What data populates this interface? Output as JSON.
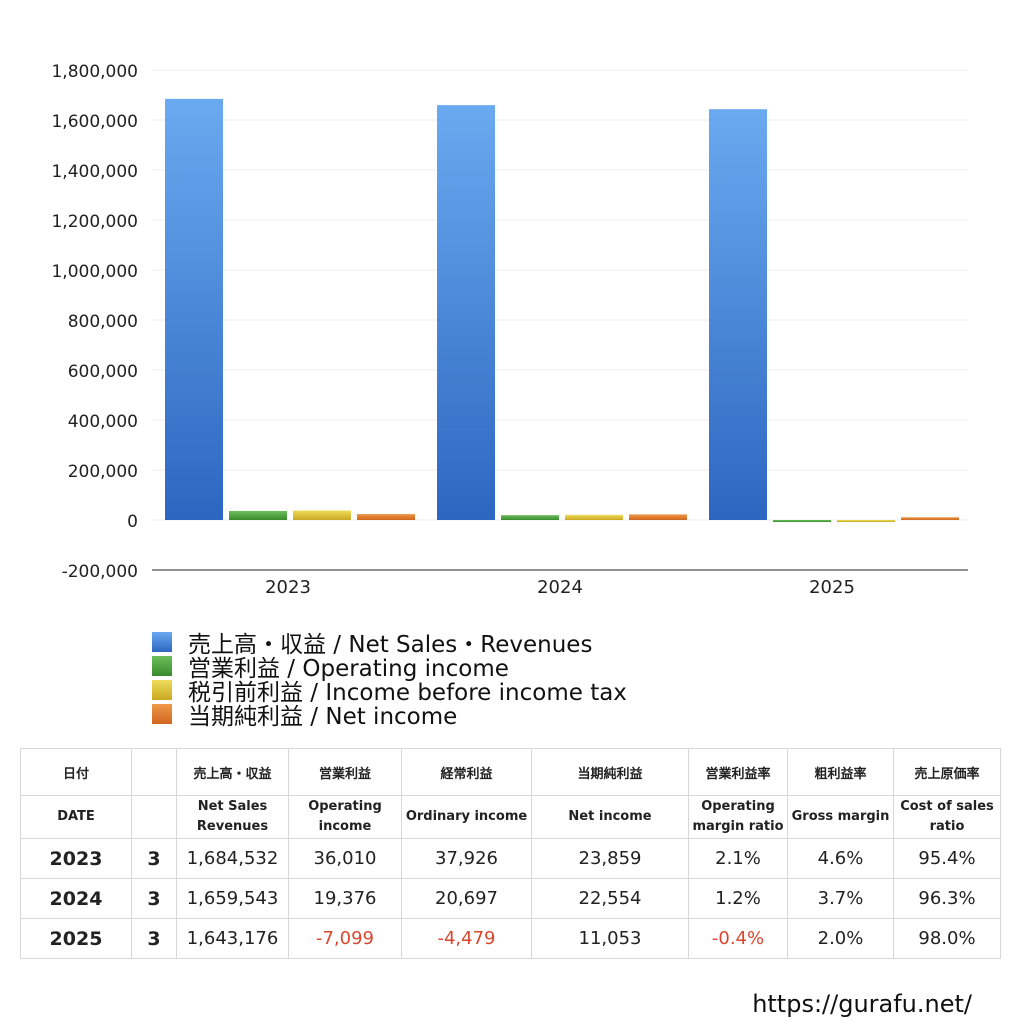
{
  "chart_data": {
    "type": "bar",
    "categories": [
      "2023",
      "2024",
      "2025"
    ],
    "ylim": [
      -200000,
      1800000
    ],
    "yticks": [
      -200000,
      0,
      200000,
      400000,
      600000,
      800000,
      1000000,
      1200000,
      1400000,
      1600000,
      1800000
    ],
    "ytick_labels": [
      "-200,000",
      "0",
      "200,000",
      "400,000",
      "600,000",
      "800,000",
      "1,000,000",
      "1,200,000",
      "1,400,000",
      "1,600,000",
      "1,800,000"
    ],
    "grid": true,
    "legend_placement": "bottom",
    "series": [
      {
        "name": "売上高・収益 / Net Sales・Revenues",
        "color": "#4a8fe0",
        "values": [
          1684532,
          1659543,
          1643176
        ]
      },
      {
        "name": "営業利益 / Operating income",
        "color": "#4aa03c",
        "values": [
          36010,
          19376,
          -7099
        ]
      },
      {
        "name": "税引前利益 / Income before income tax",
        "color": "#dcc236",
        "values": [
          37926,
          20697,
          -4479
        ]
      },
      {
        "name": "当期純利益 / Net income",
        "color": "#e07a2e",
        "values": [
          23859,
          22554,
          11053
        ]
      }
    ]
  },
  "table": {
    "header_jp": [
      "日付",
      "",
      "売上高・収益",
      "営業利益",
      "経常利益",
      "当期純利益",
      "営業利益率",
      "粗利益率",
      "売上原価率"
    ],
    "header_en": [
      "DATE",
      "",
      "Net Sales\nRevenues",
      "Operating\nincome",
      "Ordinary income",
      "Net income",
      "Operating\nmargin ratio",
      "Gross margin",
      "Cost of sales\nratio"
    ],
    "rows": [
      {
        "year": "2023",
        "month": "3",
        "sales": "1,684,532",
        "operating": "36,010",
        "ordinary": "37,926",
        "net": "23,859",
        "op_margin": "2.1%",
        "gross": "4.6%",
        "cost": "95.4%"
      },
      {
        "year": "2024",
        "month": "3",
        "sales": "1,659,543",
        "operating": "19,376",
        "ordinary": "20,697",
        "net": "22,554",
        "op_margin": "1.2%",
        "gross": "3.7%",
        "cost": "96.3%"
      },
      {
        "year": "2025",
        "month": "3",
        "sales": "1,643,176",
        "operating": "-7,099",
        "ordinary": "-4,479",
        "net": "11,053",
        "op_margin": "-0.4%",
        "gross": "2.0%",
        "cost": "98.0%"
      }
    ]
  },
  "footer": {
    "url": "https://gurafu.net/"
  }
}
